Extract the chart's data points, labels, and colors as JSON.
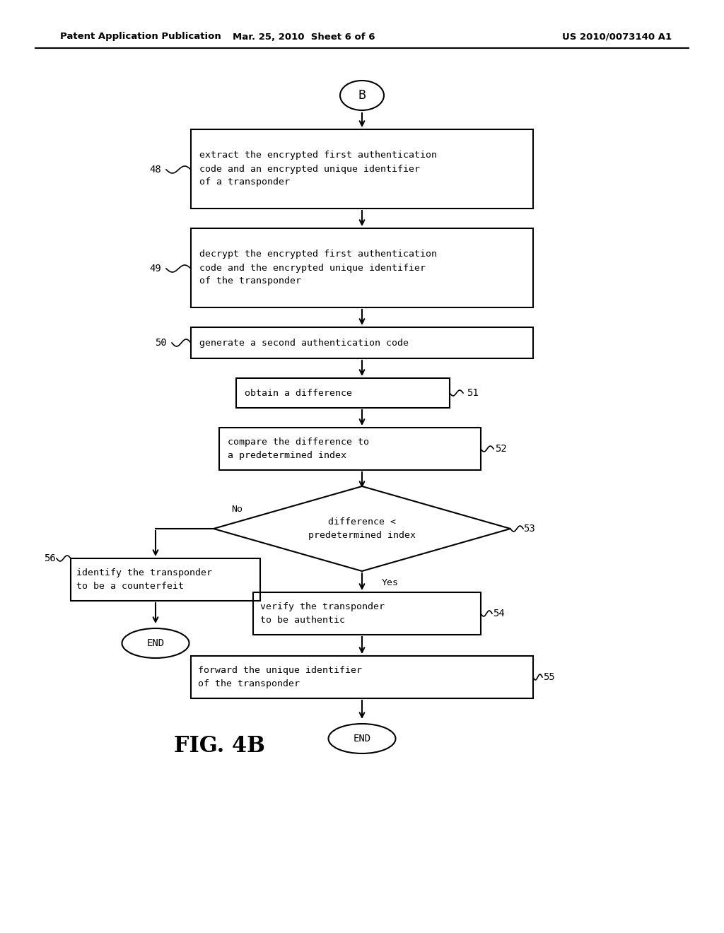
{
  "header_left": "Patent Application Publication",
  "header_mid": "Mar. 25, 2010  Sheet 6 of 6",
  "header_right": "US 2010/0073140 A1",
  "figure_label": "FIG. 4B",
  "bg_color": "#ffffff",
  "line_color": "#000000"
}
